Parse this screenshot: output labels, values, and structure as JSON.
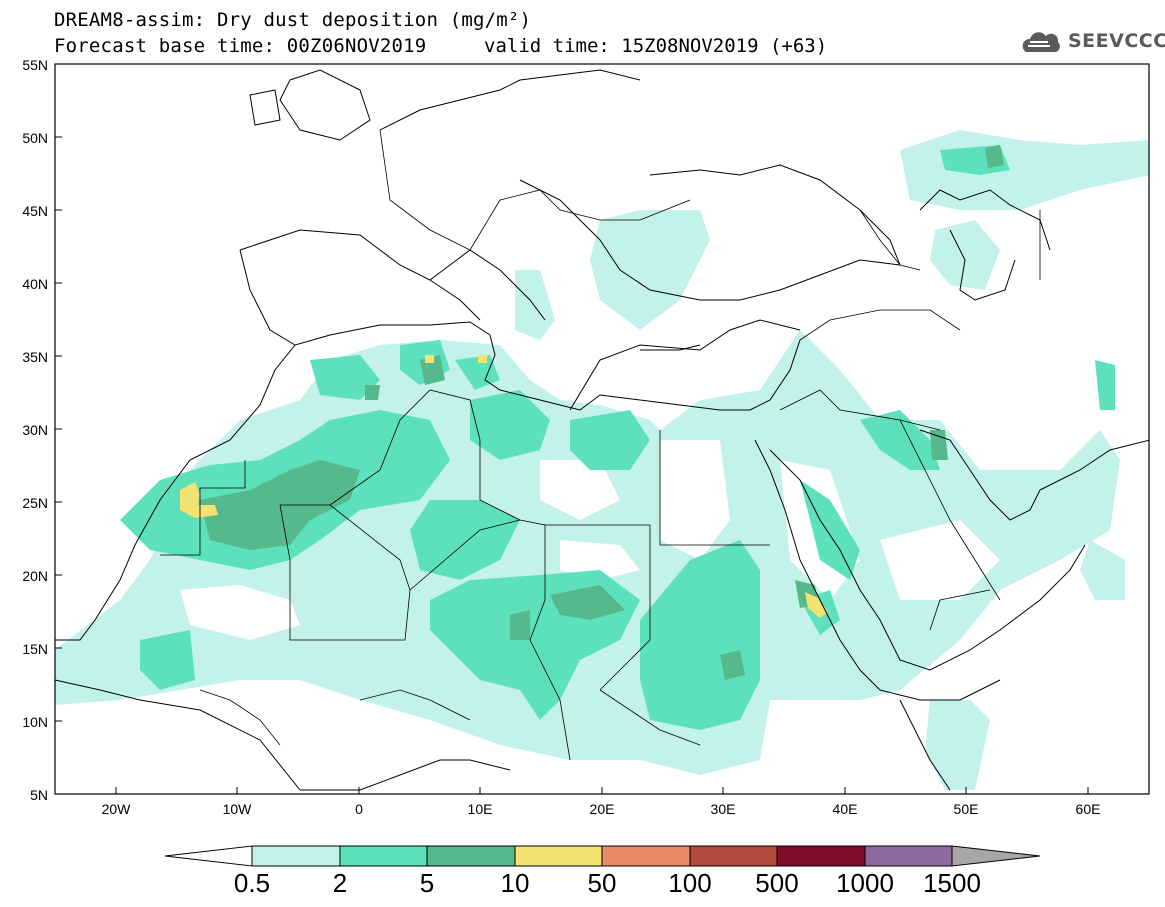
{
  "title": {
    "line1": "DREAM8-assim: Dry dust deposition (mg/m²)",
    "line2": "Forecast base time: 00Z06NOV2019",
    "valid": "valid time: 15Z08NOV2019 (+63)"
  },
  "logo": {
    "text": "SEEVCCC",
    "icon": "cloud-logo-icon"
  },
  "axes": {
    "lat_labels": [
      "55N",
      "50N",
      "45N",
      "40N",
      "35N",
      "30N",
      "25N",
      "20N",
      "15N",
      "10N",
      "5N"
    ],
    "lon_labels": [
      "20W",
      "10W",
      "0",
      "10E",
      "20E",
      "30E",
      "40E",
      "50E",
      "60E"
    ],
    "lon_range": [
      -25,
      65
    ],
    "lat_range": [
      5,
      55
    ]
  },
  "colorbar": {
    "levels": [
      "0.5",
      "2",
      "5",
      "10",
      "50",
      "100",
      "500",
      "1000",
      "1500"
    ],
    "colors": [
      "#c3f2ea",
      "#5de1bd",
      "#55b98c",
      "#f4e271",
      "#e98a66",
      "#b24b3e",
      "#7e0d2a",
      "#8e6aa0",
      "#a6a6a6"
    ]
  }
}
